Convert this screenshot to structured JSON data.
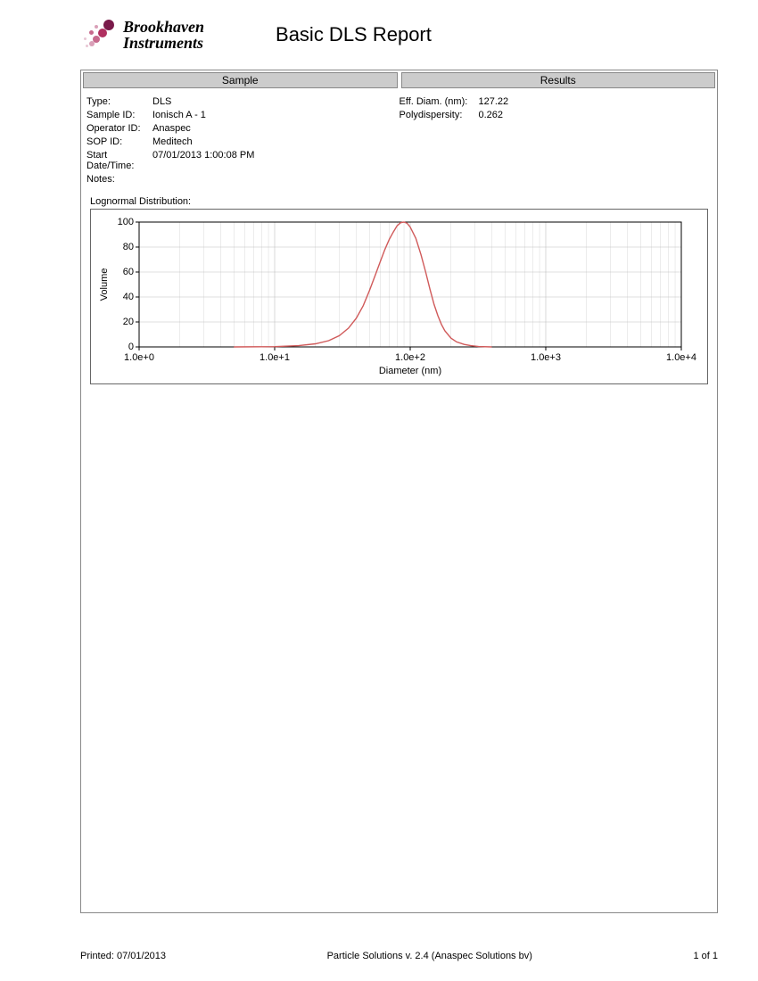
{
  "logo": {
    "line1": "Brookhaven",
    "line2": "Instruments",
    "dot_colors": [
      "#7a1a4a",
      "#b03060",
      "#c76a8d",
      "#d9a0b8",
      "#e8c6d4",
      "#f0ddE5"
    ]
  },
  "title": "Basic DLS Report",
  "section_headers": {
    "left": "Sample",
    "right": "Results"
  },
  "sample": {
    "type_label": "Type:",
    "type_value": "DLS",
    "sample_id_label": "Sample ID:",
    "sample_id_value": "Ionisch A - 1",
    "operator_label": "Operator ID:",
    "operator_value": "Anaspec",
    "sop_label": "SOP ID:",
    "sop_value": "Meditech",
    "start_label": "Start Date/Time:",
    "start_value": "07/01/2013 1:00:08 PM",
    "notes_label": "Notes:"
  },
  "results": {
    "eff_diam_label": "Eff. Diam. (nm):",
    "eff_diam_value": "127.22",
    "poly_label": "Polydispersity:",
    "poly_value": "0.262"
  },
  "chart": {
    "distribution_label": "Lognormal Distribution:",
    "ylabel": "Volume",
    "xlabel": "Diameter (nm)",
    "x_scale": "log",
    "x_min": 1,
    "x_max": 10000,
    "x_tick_values": [
      1,
      10,
      100,
      1000,
      10000
    ],
    "x_tick_labels": [
      "1.0e+0",
      "1.0e+1",
      "1.0e+2",
      "1.0e+3",
      "1.0e+4"
    ],
    "y_min": 0,
    "y_max": 100,
    "y_ticks": [
      0,
      20,
      40,
      60,
      80,
      100
    ],
    "line_color": "#d05a5a",
    "line_width": 1.4,
    "grid_color": "#bfbfbf",
    "axis_color": "#000000",
    "background": "#ffffff",
    "axis_fontsize": 11,
    "label_fontsize": 11,
    "curve_points": [
      [
        5,
        0
      ],
      [
        10,
        0.2
      ],
      [
        15,
        1
      ],
      [
        20,
        2.5
      ],
      [
        25,
        5
      ],
      [
        30,
        9
      ],
      [
        35,
        15
      ],
      [
        40,
        23
      ],
      [
        45,
        33
      ],
      [
        50,
        45
      ],
      [
        55,
        57
      ],
      [
        60,
        68
      ],
      [
        65,
        78
      ],
      [
        70,
        86
      ],
      [
        75,
        92
      ],
      [
        80,
        97
      ],
      [
        85,
        99.5
      ],
      [
        90,
        100
      ],
      [
        95,
        99
      ],
      [
        100,
        96
      ],
      [
        110,
        87
      ],
      [
        120,
        74
      ],
      [
        130,
        60
      ],
      [
        140,
        46
      ],
      [
        150,
        34
      ],
      [
        160,
        25
      ],
      [
        170,
        18
      ],
      [
        180,
        13
      ],
      [
        200,
        7
      ],
      [
        220,
        4
      ],
      [
        250,
        2
      ],
      [
        280,
        1
      ],
      [
        320,
        0.3
      ],
      [
        400,
        0
      ]
    ]
  },
  "footer": {
    "printed_label": "Printed:",
    "printed_date": "07/01/2013",
    "software": "Particle Solutions  v. 2.4  (Anaspec Solutions bv)",
    "page": "1 of 1"
  }
}
